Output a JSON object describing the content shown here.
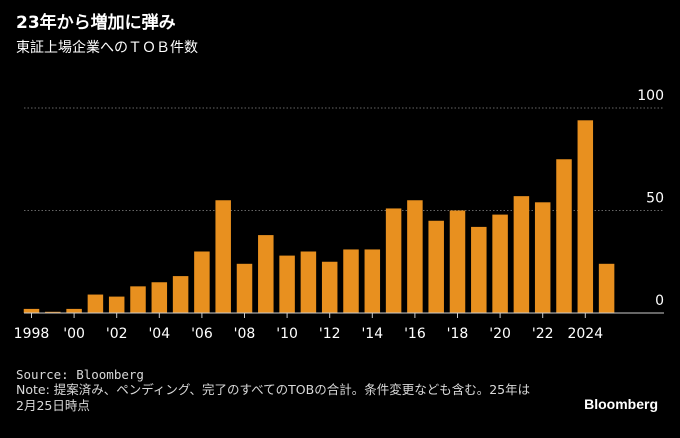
{
  "header": {
    "title": "23年から増加に弾み",
    "subtitle": "東証上場企業へのＴＯＢ件数"
  },
  "footer": {
    "source": "Source: Bloomberg",
    "note": "Note: 提案済み、ペンディング、完了のすべてのTOBの合計。条件変更なども含む。25年は2月25日時点",
    "brand": "Bloomberg"
  },
  "colors": {
    "bar": "#E8901F",
    "background": "#000000",
    "grid": "#666666",
    "text": "#ffffff",
    "axis": "#cccccc"
  },
  "chart_data": {
    "type": "bar",
    "categories": [
      "1998",
      "1999",
      "2000",
      "2001",
      "2002",
      "2003",
      "2004",
      "2005",
      "2006",
      "2007",
      "2008",
      "2009",
      "2010",
      "2011",
      "2012",
      "2013",
      "2014",
      "2015",
      "2016",
      "2017",
      "2018",
      "2019",
      "2020",
      "2021",
      "2022",
      "2023",
      "2024",
      "2025"
    ],
    "values": [
      2,
      0,
      2,
      9,
      8,
      13,
      15,
      18,
      30,
      55,
      24,
      38,
      28,
      30,
      25,
      31,
      31,
      51,
      55,
      45,
      50,
      42,
      48,
      57,
      54,
      75,
      94,
      24
    ],
    "x_tick_labels": [
      "1998",
      "'00",
      "'02",
      "'04",
      "'06",
      "'08",
      "'10",
      "'12",
      "'14",
      "'16",
      "'18",
      "'20",
      "'22",
      "2024"
    ],
    "x_tick_categories": [
      "1998",
      "2000",
      "2002",
      "2004",
      "2006",
      "2008",
      "2010",
      "2012",
      "2014",
      "2016",
      "2018",
      "2020",
      "2022",
      "2024"
    ],
    "y_ticks": [
      0,
      50,
      100
    ],
    "y_tick_labels": [
      "0",
      "50",
      "100"
    ],
    "ylim": [
      0,
      100
    ],
    "grid": true,
    "xlabel": "",
    "ylabel": ""
  }
}
